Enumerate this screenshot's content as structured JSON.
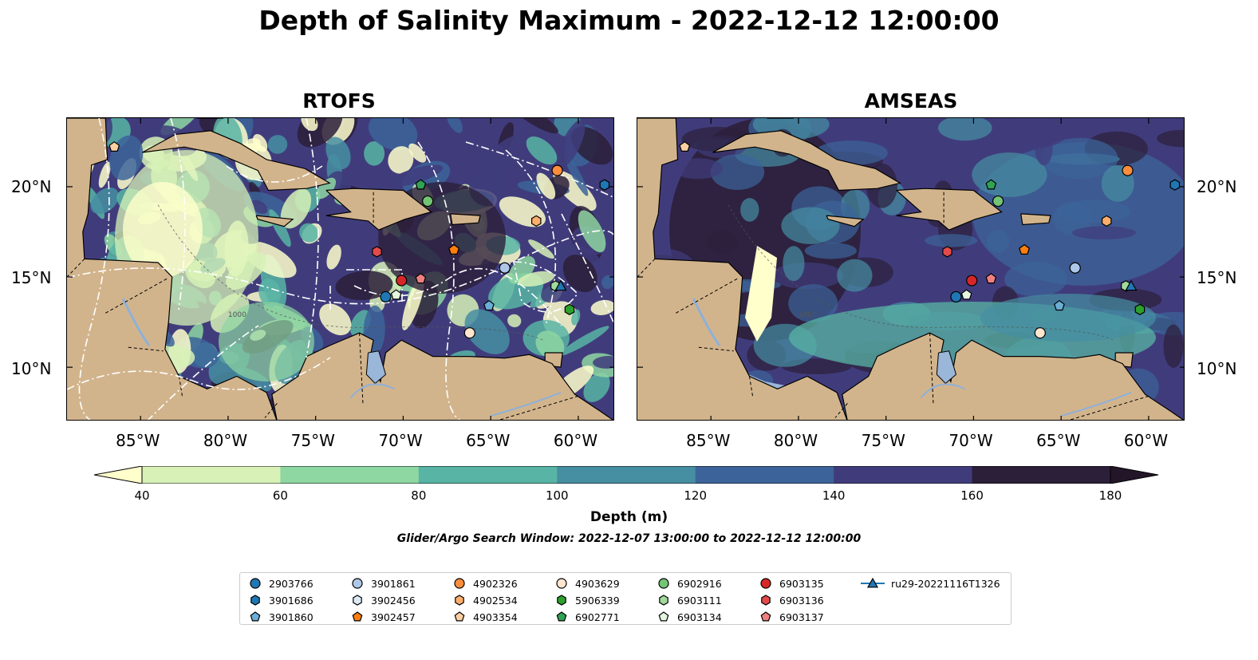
{
  "title": "Depth of Salinity Maximum - 2022-12-12 12:00:00",
  "panels": [
    {
      "name": "RTOFS"
    },
    {
      "name": "AMSEAS"
    }
  ],
  "lat_ticks": [
    "20°N",
    "15°N",
    "10°N"
  ],
  "lon_ticks": [
    "85°W",
    "80°W",
    "75°W",
    "70°W",
    "65°W",
    "60°W"
  ],
  "contour_label": "1000",
  "colorbar": {
    "label": "Depth (m)",
    "ticks": [
      "40",
      "60",
      "80",
      "100",
      "120",
      "140",
      "160",
      "180"
    ],
    "colors": [
      "#ffffcc",
      "#d7f1b7",
      "#8ed6a2",
      "#58b4a4",
      "#468ea2",
      "#3c649a",
      "#403c7c",
      "#2c1f3a",
      "#231629"
    ]
  },
  "search_window": "Glider/Argo Search Window: 2022-12-07 13:00:00 to 2022-12-12 12:00:00",
  "legend": {
    "items": [
      {
        "label": "2903766",
        "marker": "circle",
        "color": "#1f77b4"
      },
      {
        "label": "3901686",
        "marker": "hexagon",
        "color": "#1f77b4"
      },
      {
        "label": "3901860",
        "marker": "pentagon",
        "color": "#6baed6"
      },
      {
        "label": "3901861",
        "marker": "circle",
        "color": "#aec7e8"
      },
      {
        "label": "3902456",
        "marker": "hexagon",
        "color": "#deebf7"
      },
      {
        "label": "3902457",
        "marker": "pentagon",
        "color": "#ff7f0e"
      },
      {
        "label": "4902326",
        "marker": "circle",
        "color": "#fd8d3c"
      },
      {
        "label": "4902534",
        "marker": "hexagon",
        "color": "#fdae6b"
      },
      {
        "label": "4903354",
        "marker": "pentagon",
        "color": "#fdd0a2"
      },
      {
        "label": "4903629",
        "marker": "circle",
        "color": "#fee6ce"
      },
      {
        "label": "5906339",
        "marker": "hexagon",
        "color": "#2ca02c"
      },
      {
        "label": "6902771",
        "marker": "pentagon",
        "color": "#31a354"
      },
      {
        "label": "6902916",
        "marker": "circle",
        "color": "#74c476"
      },
      {
        "label": "6903111",
        "marker": "hexagon",
        "color": "#a1d99b"
      },
      {
        "label": "6903134",
        "marker": "pentagon",
        "color": "#e5f5e0"
      },
      {
        "label": "6903135",
        "marker": "circle",
        "color": "#d62728"
      },
      {
        "label": "6903136",
        "marker": "hexagon",
        "color": "#e34a4a"
      },
      {
        "label": "6903137",
        "marker": "pentagon",
        "color": "#f08080"
      },
      {
        "label": "ru29-20221116T1326",
        "marker": "triangle-line",
        "color": "#1f77b4"
      }
    ]
  },
  "observations": [
    {
      "id": "4903354",
      "lon": -86.5,
      "lat": 22.2
    },
    {
      "id": "4902326",
      "lon": -61.2,
      "lat": 20.9
    },
    {
      "id": "3901686",
      "lon": -58.5,
      "lat": 20.1
    },
    {
      "id": "6902771",
      "lon": -69.0,
      "lat": 20.1
    },
    {
      "id": "6902916",
      "lon": -68.6,
      "lat": 19.2
    },
    {
      "id": "4902534",
      "lon": -62.4,
      "lat": 18.1
    },
    {
      "id": "6903136",
      "lon": -71.5,
      "lat": 16.4
    },
    {
      "id": "3902457",
      "lon": -67.1,
      "lat": 16.5
    },
    {
      "id": "3901861",
      "lon": -64.2,
      "lat": 15.5
    },
    {
      "id": "6903135",
      "lon": -70.1,
      "lat": 14.8
    },
    {
      "id": "6903137",
      "lon": -69.0,
      "lat": 14.9
    },
    {
      "id": "2903766",
      "lon": -71.0,
      "lat": 13.9
    },
    {
      "id": "6903134",
      "lon": -70.4,
      "lat": 14.0
    },
    {
      "id": "3901860",
      "lon": -65.1,
      "lat": 13.4
    },
    {
      "id": "6903111",
      "lon": -61.3,
      "lat": 14.5
    },
    {
      "id": "ru29-20221116T1326",
      "lon": -61.0,
      "lat": 14.5
    },
    {
      "id": "5906339",
      "lon": -60.5,
      "lat": 13.2
    },
    {
      "id": "4903629",
      "lon": -66.2,
      "lat": 11.9
    }
  ]
}
